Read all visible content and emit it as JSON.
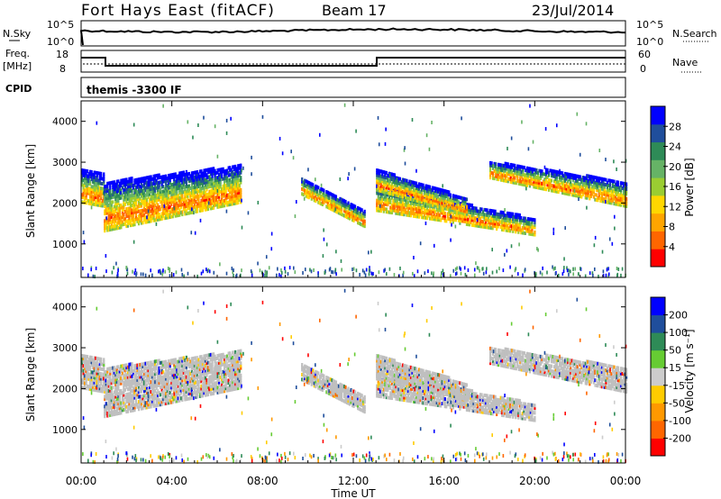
{
  "header": {
    "title": "Fort Hays East (fitACF)",
    "beam": "Beam 17",
    "date": "23/Jul/2014"
  },
  "status_panels": {
    "nsky_label": "N.Sky",
    "nsky_ticks": [
      "10^5",
      "10^0"
    ],
    "nsearch_label": "N.Search",
    "nsearch_ticks": [
      "10^5",
      "10^0"
    ],
    "freq_label": "Freq.",
    "freq_unit": "[MHz]",
    "freq_ticks": [
      "18",
      "8"
    ],
    "nave_label": "Nave",
    "nave_ticks": [
      "60",
      "0"
    ],
    "cpid_label": "CPID",
    "cpid_text": "themis -3300 IF"
  },
  "colors": {
    "power_scale": [
      "#0000ff",
      "#1f4e9c",
      "#2e8b57",
      "#66b366",
      "#9acd32",
      "#ffd700",
      "#ffa500",
      "#ff6600",
      "#ff0000"
    ],
    "velocity_scale": [
      "#0000ff",
      "#1f4e9c",
      "#2e8b57",
      "#66cc33",
      "#cccccc",
      "#ffcc00",
      "#ff9900",
      "#ff6600",
      "#ff0000"
    ],
    "ground_scatter": "#bfbfbf"
  },
  "chart_data": [
    {
      "type": "heatmap",
      "panel": "power",
      "ylabel": "Slant Range [km]",
      "colorbar_label": "Power [dB]",
      "colorbar_ticks": [
        "28",
        "24",
        "20",
        "16",
        "12",
        "8",
        "4"
      ],
      "ylim": [
        180,
        4500
      ],
      "yticks": [
        "1000",
        "2000",
        "3000",
        "4000"
      ],
      "x_hours": [
        0,
        1,
        2,
        3,
        4,
        5,
        6,
        7,
        8,
        9,
        10,
        11,
        12,
        13,
        14,
        15,
        16,
        17,
        18,
        19,
        20,
        21,
        22,
        23,
        24
      ],
      "bands": [
        {
          "hours": [
            0.0,
            1.0
          ],
          "low_km": [
            2000,
            1900
          ],
          "high_km": [
            2800,
            2700
          ]
        },
        {
          "hours": [
            1.0,
            7.0
          ],
          "low_km": [
            1300,
            2000
          ],
          "high_km": [
            2500,
            2900
          ]
        },
        {
          "hours": [
            9.7,
            12.5
          ],
          "low_km": [
            2200,
            1400
          ],
          "high_km": [
            2600,
            1800
          ]
        },
        {
          "hours": [
            13.0,
            20.0
          ],
          "low_km": [
            1800,
            1200
          ],
          "high_km": [
            2400,
            1600
          ]
        },
        {
          "hours": [
            13.0,
            17.0
          ],
          "low_km": [
            2300,
            1700
          ],
          "high_km": [
            2800,
            2100
          ]
        },
        {
          "hours": [
            18.0,
            24.0
          ],
          "low_km": [
            2600,
            1900
          ],
          "high_km": [
            3000,
            2500
          ]
        }
      ]
    },
    {
      "type": "heatmap",
      "panel": "velocity",
      "ylabel": "Slant Range [km]",
      "xlabel": "Time UT",
      "colorbar_label": "Velocity [m s⁻¹]",
      "colorbar_ticks": [
        "200",
        "100",
        "50",
        "15",
        "-15",
        "-50",
        "-100",
        "-200"
      ],
      "ylim": [
        180,
        4500
      ],
      "yticks": [
        "1000",
        "2000",
        "3000",
        "4000"
      ],
      "xticks": [
        "00:00",
        "04:00",
        "08:00",
        "12:00",
        "16:00",
        "20:00",
        "00:00"
      ]
    }
  ]
}
